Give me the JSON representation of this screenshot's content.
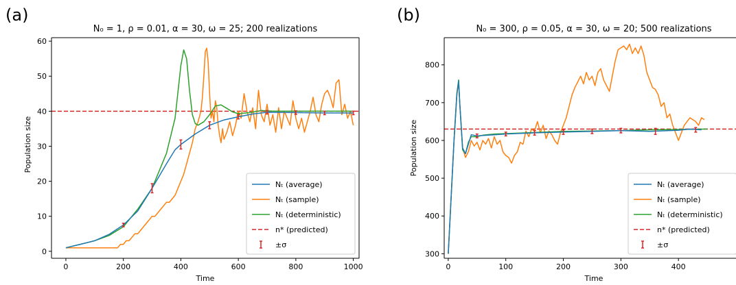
{
  "colors": {
    "average": "#1f77b4",
    "sample": "#ff7f0e",
    "deterministic": "#2ca02c",
    "predicted": "#d62728",
    "sigma": "#d62728"
  },
  "chart_data": [
    {
      "panel_label": "(a)",
      "type": "line",
      "title": "N₀ = 1, ρ = 0.01, α = 30, ω = 25; 200 realizations",
      "xlabel": "Time",
      "ylabel": "Population size",
      "xlim": [
        -50,
        1020
      ],
      "ylim": [
        -2,
        61
      ],
      "xticks": [
        0,
        200,
        400,
        600,
        800,
        1000
      ],
      "yticks": [
        0,
        10,
        20,
        30,
        40,
        50,
        60
      ],
      "legend_position": "lower-right",
      "legend": [
        "Nₜ (average)",
        "Nₜ (sample)",
        "Nₜ (deterministic)",
        "n* (predicted)",
        "±σ"
      ],
      "predicted": 40,
      "series": [
        {
          "key": "average",
          "x": [
            0,
            50,
            100,
            150,
            200,
            250,
            300,
            350,
            380,
            400,
            450,
            500,
            550,
            600,
            650,
            700,
            800,
            900,
            1000
          ],
          "y": [
            1,
            2,
            3,
            4.8,
            7.5,
            11.5,
            18,
            25,
            29,
            30.5,
            33.5,
            36,
            37.5,
            38.4,
            39.2,
            39.7,
            39.6,
            39.5,
            39.5
          ]
        },
        {
          "key": "sample",
          "x": [
            0,
            180,
            190,
            200,
            210,
            220,
            230,
            240,
            250,
            260,
            270,
            280,
            290,
            300,
            310,
            320,
            330,
            340,
            350,
            360,
            370,
            380,
            390,
            400,
            410,
            420,
            430,
            440,
            450,
            460,
            470,
            475,
            480,
            485,
            490,
            495,
            500,
            505,
            510,
            515,
            520,
            525,
            530,
            535,
            540,
            545,
            550,
            560,
            570,
            580,
            590,
            600,
            610,
            620,
            630,
            640,
            650,
            660,
            670,
            680,
            690,
            700,
            710,
            720,
            730,
            740,
            750,
            760,
            770,
            780,
            790,
            800,
            810,
            820,
            830,
            840,
            850,
            860,
            870,
            880,
            890,
            900,
            910,
            920,
            930,
            940,
            950,
            960,
            970,
            980,
            990,
            1000
          ],
          "y": [
            1,
            1,
            2,
            2,
            3,
            3,
            4,
            5,
            5,
            6,
            7,
            8,
            9,
            10,
            10,
            11,
            12,
            13,
            14,
            14,
            15,
            16,
            18,
            20,
            22,
            25,
            28,
            31,
            35,
            37,
            40,
            44,
            50,
            57,
            58,
            54,
            45,
            38,
            40,
            37,
            43,
            41,
            36,
            33,
            31,
            35,
            32,
            34,
            37,
            33,
            36,
            40,
            38,
            45,
            40,
            37,
            41,
            35,
            46,
            39,
            37,
            42,
            36,
            39,
            34,
            41,
            35,
            40,
            38,
            36,
            43,
            38,
            35,
            38,
            34,
            37,
            40,
            44,
            39,
            37,
            42,
            45,
            46,
            44,
            41,
            48,
            49,
            39,
            42,
            38,
            40,
            36
          ]
        },
        {
          "key": "deterministic",
          "x": [
            0,
            50,
            100,
            150,
            200,
            250,
            300,
            350,
            380,
            400,
            410,
            420,
            430,
            440,
            450,
            460,
            480,
            500,
            520,
            540,
            560,
            580,
            600,
            640,
            680,
            720,
            800,
            900,
            1000
          ],
          "y": [
            1,
            2,
            3,
            4.5,
            7,
            12,
            18,
            28,
            38,
            53,
            57.5,
            55,
            46,
            39,
            36.5,
            36,
            37,
            39,
            41.5,
            41.8,
            40.8,
            39.8,
            39.3,
            39.6,
            40.2,
            40,
            40,
            40,
            40
          ]
        }
      ],
      "error_bars": [
        {
          "x": 200,
          "y": 7.5,
          "sd": 0.5
        },
        {
          "x": 300,
          "y": 18,
          "sd": 1.3
        },
        {
          "x": 400,
          "y": 30.5,
          "sd": 1.3
        },
        {
          "x": 500,
          "y": 36,
          "sd": 1.0
        },
        {
          "x": 600,
          "y": 38.4,
          "sd": 0.6
        },
        {
          "x": 700,
          "y": 39.7,
          "sd": 0.5
        },
        {
          "x": 800,
          "y": 39.6,
          "sd": 0.5
        },
        {
          "x": 900,
          "y": 39.5,
          "sd": 0.5
        },
        {
          "x": 1000,
          "y": 39.5,
          "sd": 0.5
        }
      ]
    },
    {
      "panel_label": "(b)",
      "type": "line",
      "title": "N₀ = 300, ρ = 0.05, α = 30, ω = 20; 500 realizations",
      "xlabel": "Time",
      "ylabel": "Population size",
      "xlim": [
        -7,
        500
      ],
      "ylim": [
        288,
        872
      ],
      "xticks": [
        0,
        100,
        200,
        300,
        400
      ],
      "yticks": [
        300,
        400,
        500,
        600,
        700,
        800
      ],
      "legend_position": "lower-right",
      "legend": [
        "Nₜ (average)",
        "Nₜ (sample)",
        "Nₜ (deterministic)",
        "n* (predicted)",
        "±σ"
      ],
      "predicted": 630,
      "series": [
        {
          "key": "average",
          "x": [
            0,
            10,
            15,
            18,
            20,
            25,
            30,
            35,
            40,
            50,
            60,
            80,
            100,
            150,
            200,
            250,
            300,
            350,
            400,
            420,
            440
          ],
          "y": [
            300,
            600,
            720,
            758,
            700,
            580,
            565,
            590,
            615,
            612,
            613,
            615,
            617,
            620,
            622,
            624,
            626,
            624,
            627,
            630,
            628
          ]
        },
        {
          "key": "sample",
          "x": [
            0,
            10,
            15,
            18,
            20,
            25,
            30,
            35,
            40,
            45,
            50,
            55,
            60,
            65,
            70,
            75,
            80,
            85,
            90,
            95,
            100,
            105,
            110,
            115,
            120,
            125,
            130,
            135,
            140,
            145,
            150,
            155,
            160,
            165,
            170,
            175,
            180,
            185,
            190,
            195,
            200,
            205,
            210,
            215,
            220,
            225,
            230,
            235,
            240,
            245,
            250,
            255,
            260,
            265,
            270,
            275,
            280,
            285,
            290,
            295,
            300,
            305,
            310,
            315,
            320,
            325,
            330,
            335,
            340,
            345,
            350,
            355,
            360,
            365,
            370,
            375,
            380,
            385,
            390,
            395,
            400,
            405,
            410,
            415,
            420,
            425,
            430,
            435,
            440,
            445
          ],
          "y": [
            300,
            600,
            720,
            756,
            700,
            580,
            555,
            570,
            600,
            585,
            595,
            575,
            600,
            590,
            605,
            580,
            610,
            590,
            600,
            570,
            560,
            555,
            540,
            560,
            570,
            595,
            590,
            625,
            610,
            630,
            625,
            650,
            620,
            640,
            605,
            625,
            615,
            600,
            590,
            620,
            640,
            660,
            690,
            720,
            740,
            755,
            770,
            750,
            780,
            760,
            770,
            745,
            780,
            790,
            760,
            745,
            730,
            770,
            810,
            840,
            845,
            850,
            840,
            855,
            830,
            845,
            830,
            850,
            825,
            780,
            760,
            740,
            735,
            720,
            690,
            700,
            660,
            670,
            640,
            620,
            600,
            620,
            640,
            650,
            660,
            655,
            650,
            640,
            660,
            655
          ]
        },
        {
          "key": "deterministic",
          "x": [
            0,
            10,
            15,
            18,
            20,
            25,
            30,
            35,
            40,
            50,
            60,
            80,
            100,
            150,
            200,
            250,
            300,
            350,
            400,
            450
          ],
          "y": [
            300,
            600,
            725,
            760,
            700,
            575,
            565,
            595,
            610,
            610,
            614,
            617,
            618,
            621,
            624,
            625,
            626,
            628,
            629,
            630
          ]
        }
      ],
      "error_bars": [
        {
          "x": 50,
          "y": 612,
          "sd": 5
        },
        {
          "x": 100,
          "y": 617,
          "sd": 5
        },
        {
          "x": 150,
          "y": 620,
          "sd": 6
        },
        {
          "x": 200,
          "y": 622,
          "sd": 6
        },
        {
          "x": 250,
          "y": 624,
          "sd": 6
        },
        {
          "x": 300,
          "y": 626,
          "sd": 6
        },
        {
          "x": 360,
          "y": 624,
          "sd": 8
        },
        {
          "x": 430,
          "y": 628,
          "sd": 6
        }
      ]
    }
  ]
}
